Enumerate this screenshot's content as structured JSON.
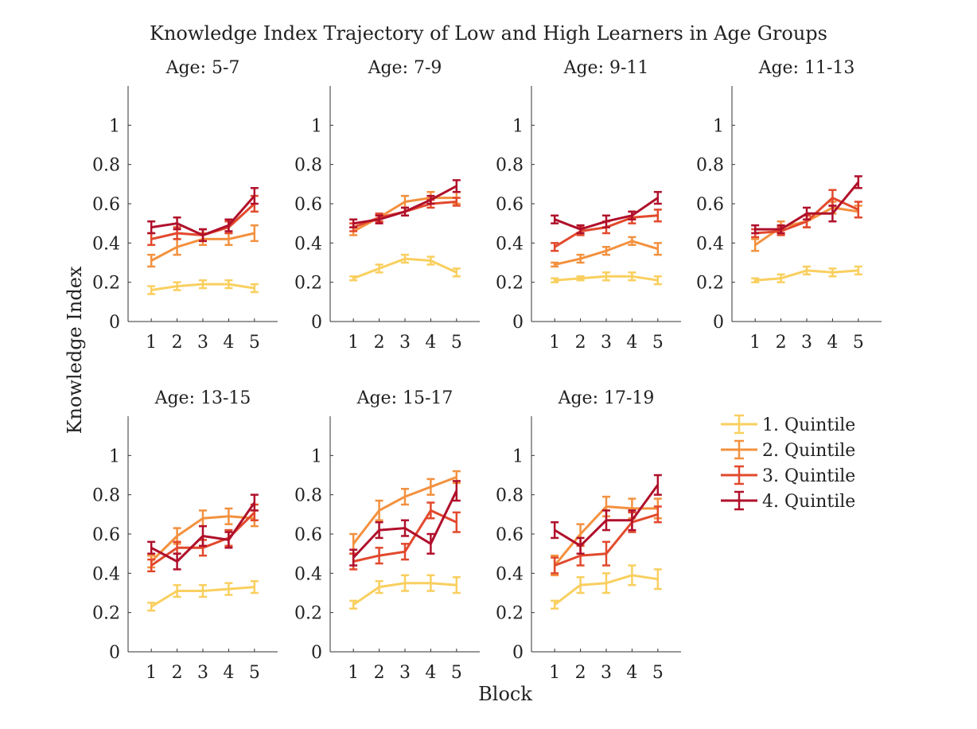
{
  "figure": {
    "title": "Knowledge Index Trajectory of Low and High Learners in Age Groups",
    "xlabel": "Block",
    "ylabel": "Knowledge Index"
  },
  "colors": {
    "1. Quintile": "#f9cf5f",
    "2. Quintile": "#f3913f",
    "3. Quintile": "#e2492d",
    "4. Quintile": "#b0102b"
  },
  "legend": {
    "placement": "right, below top row",
    "entries": [
      "1. Quintile",
      "2. Quintile",
      "3. Quintile",
      "4. Quintile"
    ]
  },
  "chart_data": [
    {
      "type": "line",
      "title": "Age: 5-7",
      "x": [
        1,
        2,
        3,
        4,
        5
      ],
      "xticks": [
        "1",
        "2",
        "3",
        "4",
        "5"
      ],
      "ylim": [
        0,
        1.2
      ],
      "yticks": [
        "0",
        "0.2",
        "0.4",
        "0.6",
        "0.8",
        "1"
      ],
      "series": [
        {
          "name": "1. Quintile",
          "values": [
            0.16,
            0.18,
            0.19,
            0.19,
            0.17
          ],
          "err": [
            0.02,
            0.02,
            0.02,
            0.02,
            0.02
          ]
        },
        {
          "name": "2. Quintile",
          "values": [
            0.31,
            0.38,
            0.42,
            0.42,
            0.45
          ],
          "err": [
            0.03,
            0.04,
            0.03,
            0.03,
            0.04
          ]
        },
        {
          "name": "3. Quintile",
          "values": [
            0.42,
            0.45,
            0.44,
            0.48,
            0.6
          ],
          "err": [
            0.03,
            0.03,
            0.03,
            0.03,
            0.04
          ]
        },
        {
          "name": "4. Quintile",
          "values": [
            0.48,
            0.5,
            0.44,
            0.49,
            0.64
          ],
          "err": [
            0.03,
            0.03,
            0.03,
            0.03,
            0.04
          ]
        }
      ]
    },
    {
      "type": "line",
      "title": "Age: 7-9",
      "x": [
        1,
        2,
        3,
        4,
        5
      ],
      "xticks": [
        "1",
        "2",
        "3",
        "4",
        "5"
      ],
      "ylim": [
        0,
        1.2
      ],
      "yticks": [
        "0",
        "0.2",
        "0.4",
        "0.6",
        "0.8",
        "1"
      ],
      "series": [
        {
          "name": "1. Quintile",
          "values": [
            0.22,
            0.27,
            0.32,
            0.31,
            0.25
          ],
          "err": [
            0.01,
            0.02,
            0.02,
            0.02,
            0.02
          ]
        },
        {
          "name": "2. Quintile",
          "values": [
            0.46,
            0.53,
            0.61,
            0.63,
            0.63
          ],
          "err": [
            0.02,
            0.02,
            0.03,
            0.03,
            0.03
          ]
        },
        {
          "name": "3. Quintile",
          "values": [
            0.48,
            0.53,
            0.56,
            0.6,
            0.61
          ],
          "err": [
            0.02,
            0.02,
            0.02,
            0.02,
            0.02
          ]
        },
        {
          "name": "4. Quintile",
          "values": [
            0.5,
            0.52,
            0.56,
            0.62,
            0.69
          ],
          "err": [
            0.02,
            0.02,
            0.02,
            0.02,
            0.03
          ]
        }
      ]
    },
    {
      "type": "line",
      "title": "Age: 9-11",
      "x": [
        1,
        2,
        3,
        4,
        5
      ],
      "xticks": [
        "1",
        "2",
        "3",
        "4",
        "5"
      ],
      "ylim": [
        0,
        1.2
      ],
      "yticks": [
        "0",
        "0.2",
        "0.4",
        "0.6",
        "0.8",
        "1"
      ],
      "series": [
        {
          "name": "1. Quintile",
          "values": [
            0.21,
            0.22,
            0.23,
            0.23,
            0.21
          ],
          "err": [
            0.01,
            0.01,
            0.02,
            0.02,
            0.02
          ]
        },
        {
          "name": "2. Quintile",
          "values": [
            0.29,
            0.32,
            0.36,
            0.41,
            0.37
          ],
          "err": [
            0.01,
            0.02,
            0.02,
            0.02,
            0.03
          ]
        },
        {
          "name": "3. Quintile",
          "values": [
            0.38,
            0.46,
            0.48,
            0.53,
            0.54
          ],
          "err": [
            0.02,
            0.02,
            0.03,
            0.03,
            0.03
          ]
        },
        {
          "name": "4. Quintile",
          "values": [
            0.52,
            0.47,
            0.51,
            0.54,
            0.63
          ],
          "err": [
            0.02,
            0.02,
            0.03,
            0.02,
            0.03
          ]
        }
      ]
    },
    {
      "type": "line",
      "title": "Age: 11-13",
      "x": [
        1,
        2,
        3,
        4,
        5
      ],
      "xticks": [
        "1",
        "2",
        "3",
        "4",
        "5"
      ],
      "ylim": [
        0,
        1.2
      ],
      "yticks": [
        "0",
        "0.2",
        "0.4",
        "0.6",
        "0.8",
        "1"
      ],
      "series": [
        {
          "name": "1. Quintile",
          "values": [
            0.21,
            0.22,
            0.26,
            0.25,
            0.26
          ],
          "err": [
            0.01,
            0.02,
            0.02,
            0.02,
            0.02
          ]
        },
        {
          "name": "2. Quintile",
          "values": [
            0.39,
            0.48,
            0.51,
            0.58,
            0.56
          ],
          "err": [
            0.03,
            0.03,
            0.03,
            0.03,
            0.03
          ]
        },
        {
          "name": "3. Quintile",
          "values": [
            0.45,
            0.46,
            0.51,
            0.63,
            0.57
          ],
          "err": [
            0.02,
            0.02,
            0.03,
            0.04,
            0.04
          ]
        },
        {
          "name": "4. Quintile",
          "values": [
            0.47,
            0.47,
            0.55,
            0.55,
            0.71
          ],
          "err": [
            0.02,
            0.02,
            0.03,
            0.04,
            0.03
          ]
        }
      ]
    },
    {
      "type": "line",
      "title": "Age: 13-15",
      "x": [
        1,
        2,
        3,
        4,
        5
      ],
      "xticks": [
        "1",
        "2",
        "3",
        "4",
        "5"
      ],
      "ylim": [
        0,
        1.2
      ],
      "yticks": [
        "0",
        "0.2",
        "0.4",
        "0.6",
        "0.8",
        "1"
      ],
      "series": [
        {
          "name": "1. Quintile",
          "values": [
            0.23,
            0.31,
            0.31,
            0.32,
            0.33
          ],
          "err": [
            0.02,
            0.03,
            0.03,
            0.03,
            0.03
          ]
        },
        {
          "name": "2. Quintile",
          "values": [
            0.46,
            0.59,
            0.68,
            0.69,
            0.68
          ],
          "err": [
            0.03,
            0.04,
            0.04,
            0.04,
            0.04
          ]
        },
        {
          "name": "3. Quintile",
          "values": [
            0.44,
            0.53,
            0.53,
            0.58,
            0.71
          ],
          "err": [
            0.03,
            0.03,
            0.04,
            0.04,
            0.04
          ]
        },
        {
          "name": "4. Quintile",
          "values": [
            0.53,
            0.46,
            0.59,
            0.57,
            0.76
          ],
          "err": [
            0.03,
            0.04,
            0.05,
            0.04,
            0.04
          ]
        }
      ]
    },
    {
      "type": "line",
      "title": "Age: 15-17",
      "x": [
        1,
        2,
        3,
        4,
        5
      ],
      "xticks": [
        "1",
        "2",
        "3",
        "4",
        "5"
      ],
      "ylim": [
        0,
        1.2
      ],
      "yticks": [
        "0",
        "0.2",
        "0.4",
        "0.6",
        "0.8",
        "1"
      ],
      "series": [
        {
          "name": "1. Quintile",
          "values": [
            0.24,
            0.33,
            0.35,
            0.35,
            0.34
          ],
          "err": [
            0.02,
            0.03,
            0.04,
            0.04,
            0.04
          ]
        },
        {
          "name": "2. Quintile",
          "values": [
            0.55,
            0.72,
            0.79,
            0.84,
            0.89
          ],
          "err": [
            0.05,
            0.05,
            0.04,
            0.04,
            0.03
          ]
        },
        {
          "name": "3. Quintile",
          "values": [
            0.46,
            0.49,
            0.51,
            0.72,
            0.66
          ],
          "err": [
            0.04,
            0.04,
            0.04,
            0.04,
            0.05
          ]
        },
        {
          "name": "4. Quintile",
          "values": [
            0.48,
            0.62,
            0.63,
            0.55,
            0.82
          ],
          "err": [
            0.04,
            0.04,
            0.04,
            0.05,
            0.05
          ]
        }
      ]
    },
    {
      "type": "line",
      "title": "Age: 17-19",
      "x": [
        1,
        2,
        3,
        4,
        5
      ],
      "xticks": [
        "1",
        "2",
        "3",
        "4",
        "5"
      ],
      "ylim": [
        0,
        1.2
      ],
      "yticks": [
        "0",
        "0.2",
        "0.4",
        "0.6",
        "0.8",
        "1"
      ],
      "series": [
        {
          "name": "1. Quintile",
          "values": [
            0.24,
            0.34,
            0.35,
            0.39,
            0.37
          ],
          "err": [
            0.02,
            0.04,
            0.05,
            0.05,
            0.05
          ]
        },
        {
          "name": "2. Quintile",
          "values": [
            0.44,
            0.6,
            0.74,
            0.73,
            0.73
          ],
          "err": [
            0.05,
            0.05,
            0.05,
            0.05,
            0.05
          ]
        },
        {
          "name": "3. Quintile",
          "values": [
            0.44,
            0.49,
            0.5,
            0.66,
            0.7
          ],
          "err": [
            0.04,
            0.05,
            0.06,
            0.05,
            0.04
          ]
        },
        {
          "name": "4. Quintile",
          "values": [
            0.62,
            0.54,
            0.67,
            0.67,
            0.85
          ],
          "err": [
            0.04,
            0.04,
            0.05,
            0.05,
            0.05
          ]
        }
      ]
    }
  ]
}
